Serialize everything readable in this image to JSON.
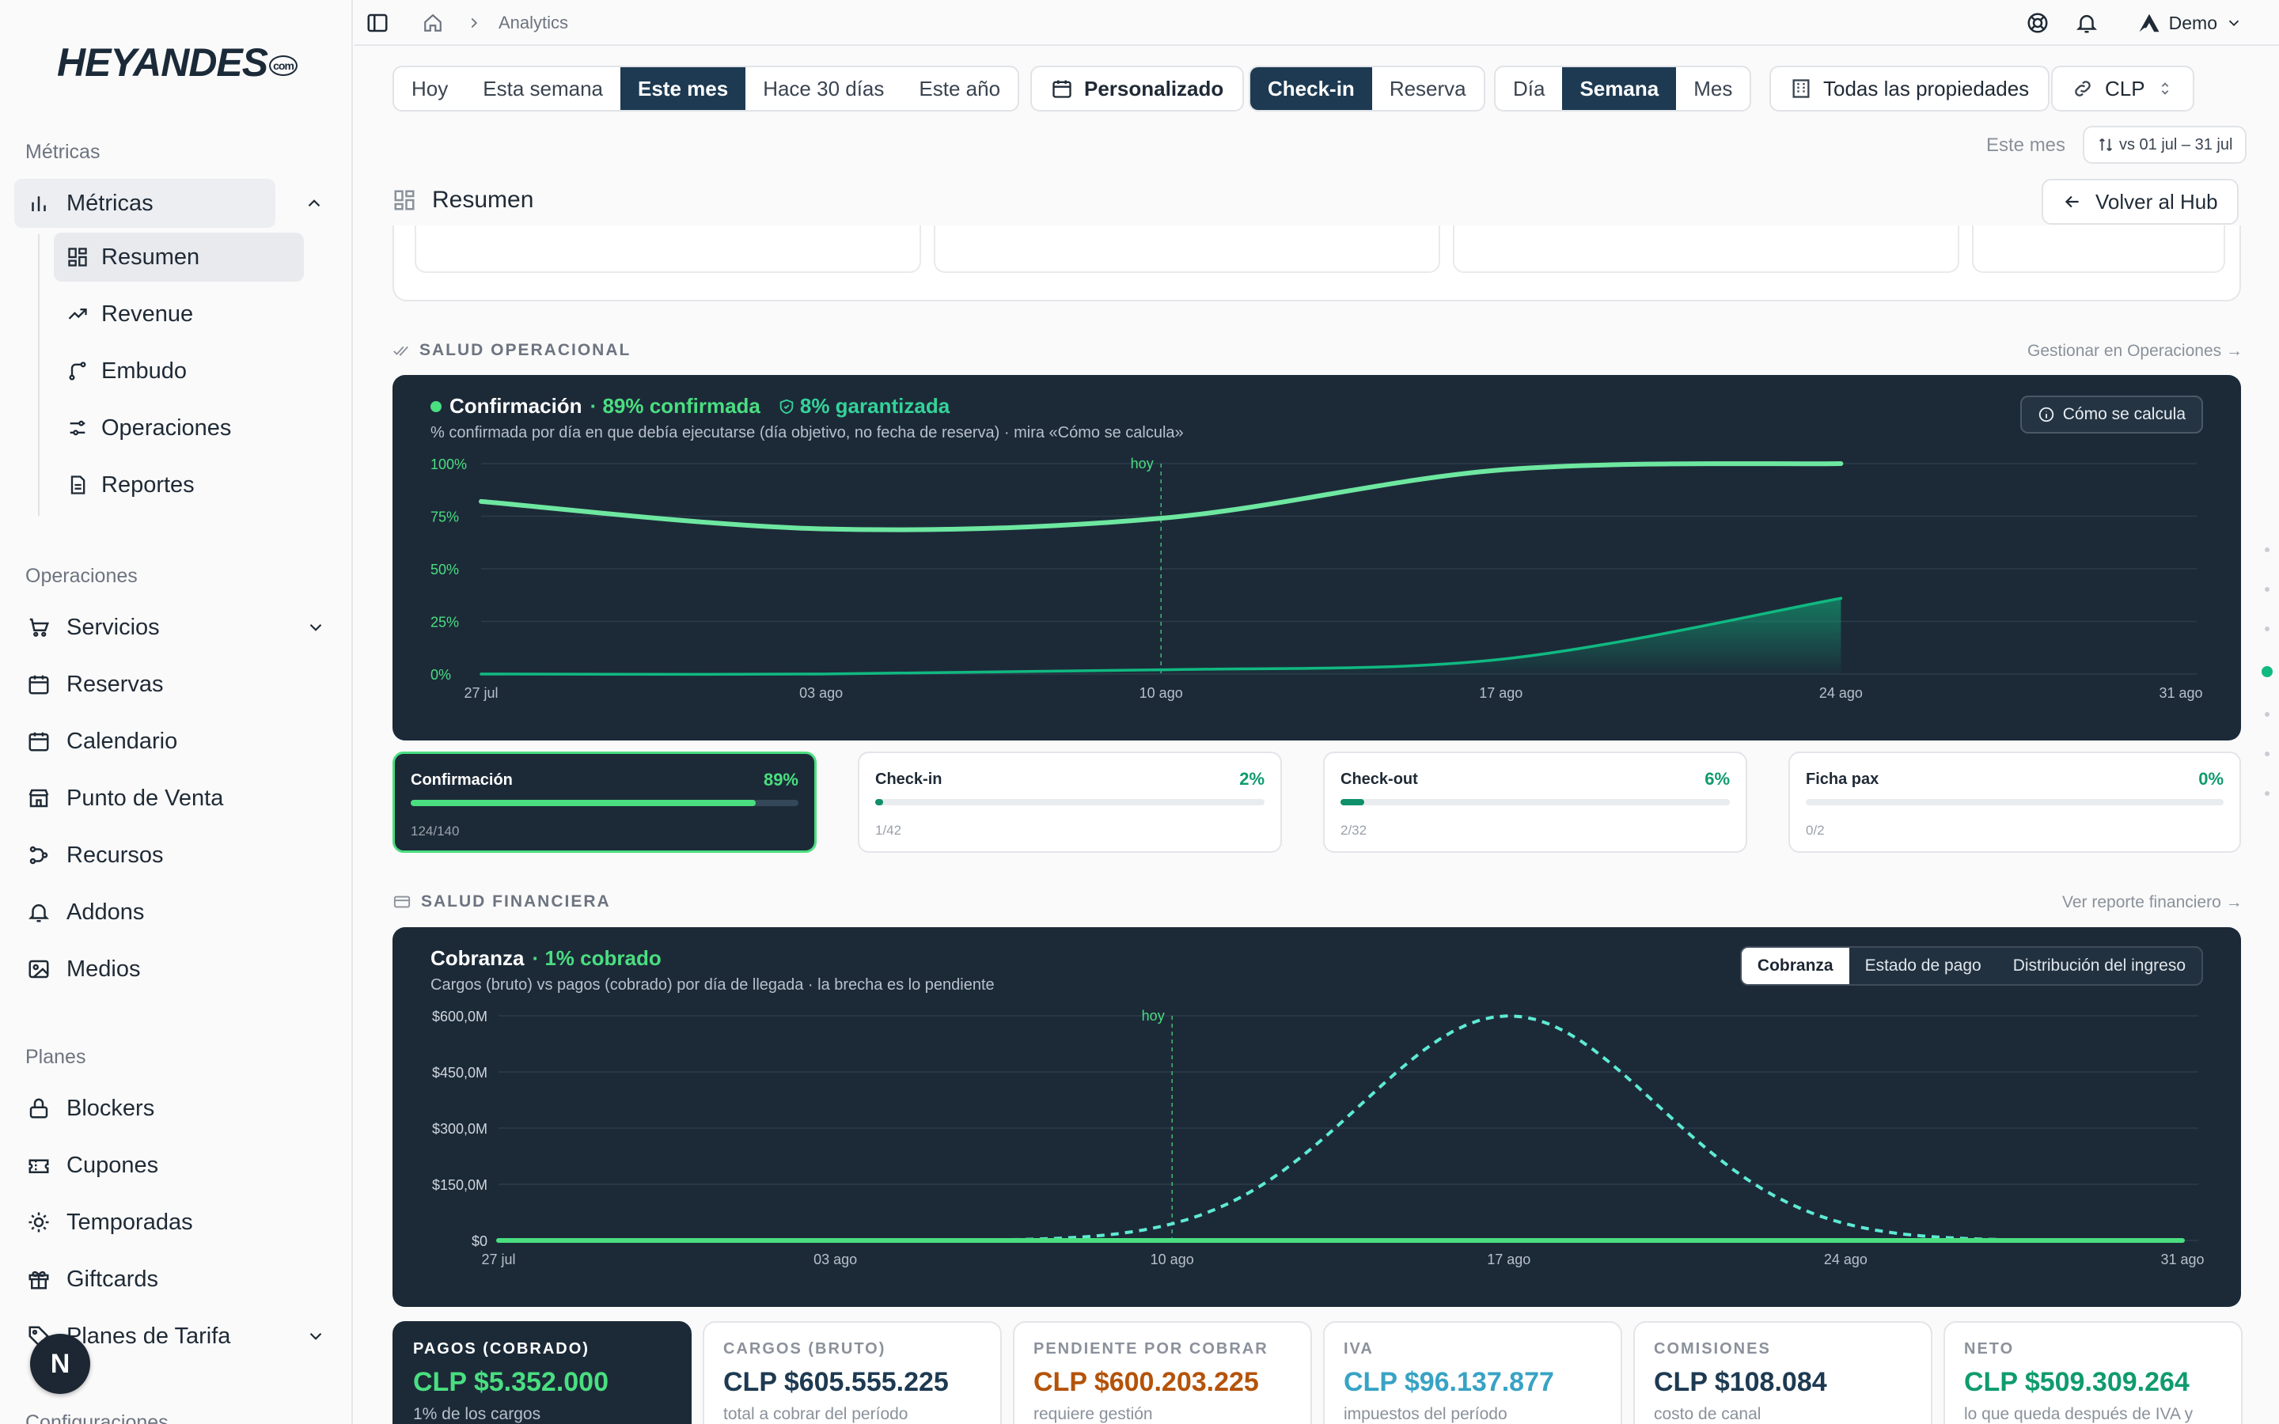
{
  "brand": {
    "logo": "HEYANDES",
    "tm": "com"
  },
  "sidebar": {
    "sections": [
      "Métricas",
      "Operaciones",
      "Planes",
      "Configuraciones"
    ],
    "metricas_group": "Métricas",
    "metricas_items": [
      "Resumen",
      "Revenue",
      "Embudo",
      "Operaciones",
      "Reportes"
    ],
    "operaciones_items": [
      "Servicios",
      "Reservas",
      "Calendario",
      "Punto de Venta",
      "Recursos",
      "Addons",
      "Medios"
    ],
    "planes_items": [
      "Blockers",
      "Cupones",
      "Temporadas",
      "Giftcards",
      "Planes de Tarifa"
    ],
    "avatar_initial": "N"
  },
  "topbar": {
    "breadcrumb": "Analytics",
    "user": "Demo"
  },
  "filters": {
    "period": [
      "Hoy",
      "Esta semana",
      "Este mes",
      "Hace 30 días",
      "Este año"
    ],
    "period_active": "Este mes",
    "custom": "Personalizado",
    "basis": [
      "Check-in",
      "Reserva"
    ],
    "basis_active": "Check-in",
    "grain": [
      "Día",
      "Semana",
      "Mes"
    ],
    "grain_active": "Semana",
    "properties": "Todas las propiedades",
    "currency": "CLP"
  },
  "compare": {
    "label": "Este mes",
    "range": "vs 01 jul – 31 jul"
  },
  "resumen": {
    "title": "Resumen",
    "back": "Volver al Hub"
  },
  "operational": {
    "section": "SALUD OPERACIONAL",
    "link": "Gestionar en Operaciones →",
    "title": "Confirmación",
    "badge_confirmed": "· 89% confirmada",
    "badge_guaranteed": "8% garantizada",
    "subtitle": "% confirmada por día en que debía ejecutarse (día objetivo, no fecha de reserva) · mira «Cómo se calcula»",
    "calc": "Cómo se calcula",
    "today": "hoy"
  },
  "financial": {
    "section": "SALUD FINANCIERA",
    "link": "Ver reporte financiero →",
    "title": "Cobranza",
    "badge": "· 1% cobrado",
    "subtitle": "Cargos (bruto) vs pagos (cobrado) por día de llegada · la brecha es lo pendiente",
    "tabs": [
      "Cobranza",
      "Estado de pago",
      "Distribución del ingreso"
    ],
    "tab_active": "Cobranza",
    "today": "hoy"
  },
  "kpis": [
    {
      "name": "Confirmación",
      "pct": "89%",
      "count": "124/140",
      "value": 0.89
    },
    {
      "name": "Check-in",
      "pct": "2%",
      "count": "1/42",
      "value": 0.02
    },
    {
      "name": "Check-out",
      "pct": "6%",
      "count": "2/32",
      "value": 0.06
    },
    {
      "name": "Ficha pax",
      "pct": "0%",
      "count": "0/2",
      "value": 0.0
    }
  ],
  "money": [
    {
      "label": "PAGOS (COBRADO)",
      "value": "CLP $5.352.000",
      "desc": "1% de los cargos",
      "color": "#4ade80"
    },
    {
      "label": "CARGOS (BRUTO)",
      "value": "CLP $605.555.225",
      "desc": "total a cobrar del período",
      "color": "#1d3a52"
    },
    {
      "label": "PENDIENTE POR COBRAR",
      "value": "CLP $600.203.225",
      "desc": "requiere gestión",
      "color": "#b45309"
    },
    {
      "label": "IVA",
      "value": "CLP $96.137.877",
      "desc": "impuestos del período",
      "color": "#38a3c4"
    },
    {
      "label": "COMISIONES",
      "value": "CLP $108.084",
      "desc": "costo de canal",
      "color": "#1d3a52"
    },
    {
      "label": "NETO",
      "value": "CLP $509.309.264",
      "desc": "lo que queda después de IVA y",
      "color": "#0f9b6e"
    }
  ],
  "chart_data": [
    {
      "type": "line",
      "title": "Confirmación",
      "x": [
        "27 jul",
        "03 ago",
        "10 ago",
        "17 ago",
        "24 ago",
        "31 ago"
      ],
      "ylim": [
        0,
        100
      ],
      "yticks": [
        "100%",
        "75%",
        "50%",
        "25%",
        "0%"
      ],
      "series": [
        {
          "name": "Confirmación",
          "values": [
            82,
            69,
            74,
            97,
            100,
            null
          ],
          "color": "#6ee7a0"
        },
        {
          "name": "garantizada",
          "values": [
            0,
            0,
            2,
            7,
            36,
            null
          ],
          "color": "#10b981"
        }
      ],
      "today": "10 ago",
      "grid": true
    },
    {
      "type": "line",
      "title": "Cobranza",
      "x": [
        "27 jul",
        "03 ago",
        "10 ago",
        "17 ago",
        "24 ago",
        "31 ago"
      ],
      "ylim": [
        0,
        600
      ],
      "yticks": [
        "$600,0M",
        "$450,0M",
        "$300,0M",
        "$150,0M",
        "$0"
      ],
      "series": [
        {
          "name": "Cargos (bruto)",
          "values": [
            0,
            0,
            0,
            600,
            0,
            0
          ],
          "color": "#5eead4",
          "dashed": true
        },
        {
          "name": "Pagos (cobrado)",
          "values": [
            0,
            0,
            0,
            0,
            0,
            0
          ],
          "color": "#4ade80"
        }
      ],
      "today": "10 ago",
      "grid": true
    }
  ]
}
